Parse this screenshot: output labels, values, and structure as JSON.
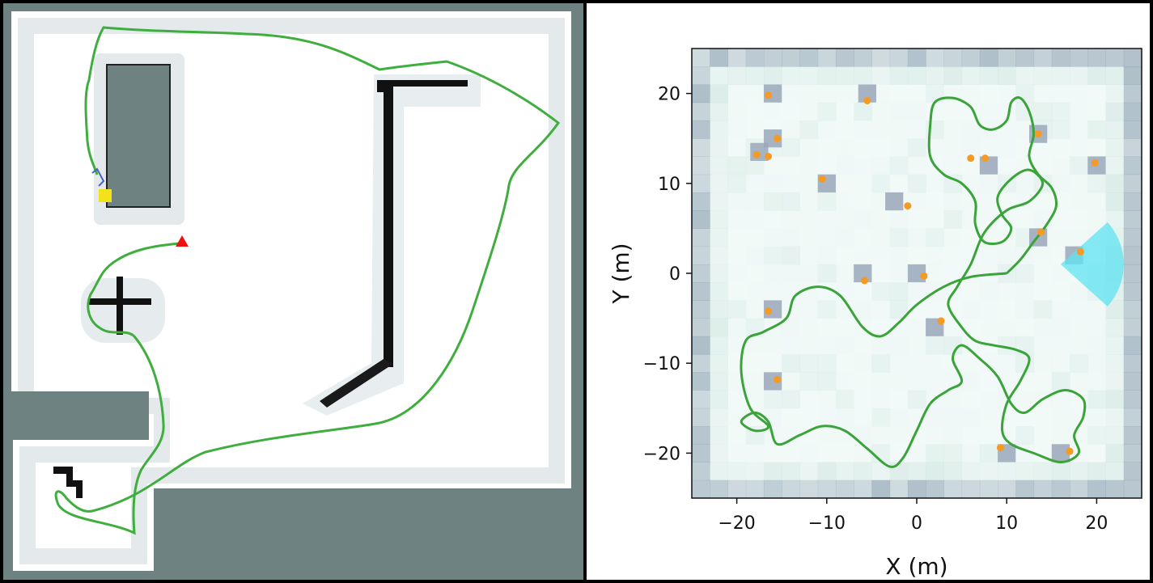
{
  "left_map": {
    "colors": {
      "background": "#6e8282",
      "free_space": "#ffffff",
      "inflation": "#e6ecee",
      "obstacle": "#111111",
      "trajectory": "#3fae3f",
      "goal_marker": "#ee1111",
      "start_marker": "#f2e21a"
    },
    "markers": [
      {
        "name": "goal",
        "shape": "triangle",
        "color": "#ee1111"
      },
      {
        "name": "start",
        "shape": "square",
        "color": "#f2e21a"
      }
    ]
  },
  "chart_data": {
    "type": "scatter",
    "title": "",
    "xlabel": "X (m)",
    "ylabel": "Y (m)",
    "xlim": [
      -25,
      25
    ],
    "ylim": [
      -25,
      25
    ],
    "xticks": [
      -20,
      -10,
      0,
      10,
      20
    ],
    "yticks": [
      -20,
      -10,
      0,
      10,
      20
    ],
    "tick_labels_x": [
      "−20",
      "−10",
      "0",
      "10",
      "20"
    ],
    "tick_labels_y": [
      "−20",
      "−10",
      "0",
      "10",
      "20"
    ],
    "grid": false,
    "colors": {
      "trajectory": "#3aa33a",
      "landmark": "#f59a23",
      "obstacle_cell": "#9aa7ba",
      "sensor_fov": "#5fe3f0"
    },
    "obstacles": [
      [
        -16,
        20
      ],
      [
        -5.5,
        20
      ],
      [
        -16,
        15
      ],
      [
        -17.5,
        13.5
      ],
      [
        -10,
        10
      ],
      [
        13.5,
        15.5
      ],
      [
        8,
        12
      ],
      [
        20,
        12
      ],
      [
        -2.5,
        8
      ],
      [
        13.5,
        4
      ],
      [
        17.5,
        2
      ],
      [
        -6,
        0
      ],
      [
        0,
        0
      ],
      [
        -16,
        -4
      ],
      [
        2,
        -6
      ],
      [
        -16,
        -12
      ],
      [
        10,
        -20
      ],
      [
        16,
        -20
      ]
    ],
    "landmarks": [
      [
        -16.5,
        19.8
      ],
      [
        -5.5,
        19.2
      ],
      [
        -15.5,
        15
      ],
      [
        -17.8,
        13.2
      ],
      [
        -16.5,
        13
      ],
      [
        -10.5,
        10.5
      ],
      [
        6,
        12.8
      ],
      [
        7.6,
        12.8
      ],
      [
        13.5,
        15.5
      ],
      [
        19.8,
        12.3
      ],
      [
        -1,
        7.5
      ],
      [
        13.8,
        4.6
      ],
      [
        18.2,
        2.4
      ],
      [
        -5.8,
        -0.8
      ],
      [
        0.8,
        -0.3
      ],
      [
        -16.5,
        -4.2
      ],
      [
        2.7,
        -5.3
      ],
      [
        -15.5,
        -11.8
      ],
      [
        9.3,
        -19.4
      ],
      [
        17,
        -19.8
      ]
    ],
    "sensor_fov": {
      "origin": [
        16,
        1
      ],
      "range": 7,
      "heading_deg": 0,
      "half_angle_deg": 42
    },
    "trajectory": [
      [
        10,
        0
      ],
      [
        6,
        -0.4
      ],
      [
        3,
        -1.5
      ],
      [
        0,
        -3.5
      ],
      [
        -2,
        -5.5
      ],
      [
        -4,
        -7
      ],
      [
        -6,
        -6
      ],
      [
        -8.5,
        -2.5
      ],
      [
        -11,
        -1.5
      ],
      [
        -13.5,
        -2.5
      ],
      [
        -14.5,
        -5
      ],
      [
        -17,
        -6.5
      ],
      [
        -19,
        -7.5
      ],
      [
        -19.5,
        -11
      ],
      [
        -18.5,
        -15
      ],
      [
        -16.5,
        -17
      ],
      [
        -18,
        -17.5
      ],
      [
        -19.5,
        -16.5
      ],
      [
        -18,
        -15.5
      ],
      [
        -16.5,
        -16.5
      ],
      [
        -15.5,
        -19
      ],
      [
        -13,
        -18
      ],
      [
        -10.5,
        -17
      ],
      [
        -8,
        -17.5
      ],
      [
        -5.5,
        -19.5
      ],
      [
        -3,
        -21.5
      ],
      [
        -1.5,
        -20.5
      ],
      [
        0,
        -17.5
      ],
      [
        1.5,
        -14.5
      ],
      [
        3.5,
        -13
      ],
      [
        5,
        -12
      ],
      [
        4,
        -9.5
      ],
      [
        5,
        -8
      ],
      [
        7,
        -9.5
      ],
      [
        9,
        -11.5
      ],
      [
        10.5,
        -14.5
      ],
      [
        12,
        -15.5
      ],
      [
        14,
        -14
      ],
      [
        16.5,
        -13
      ],
      [
        18.5,
        -14
      ],
      [
        18.5,
        -16
      ],
      [
        17.5,
        -18
      ],
      [
        18,
        -20
      ],
      [
        16,
        -21
      ],
      [
        13,
        -20
      ],
      [
        10.5,
        -19
      ],
      [
        9.5,
        -17.5
      ],
      [
        10,
        -14.5
      ],
      [
        11.5,
        -12
      ],
      [
        12.5,
        -9.5
      ],
      [
        11,
        -8.5
      ],
      [
        8.5,
        -8
      ],
      [
        6.5,
        -7.5
      ],
      [
        5,
        -6
      ],
      [
        3.5,
        -3.5
      ],
      [
        4.5,
        -1.5
      ],
      [
        6,
        1
      ],
      [
        7.5,
        4.5
      ],
      [
        10,
        7
      ],
      [
        12.5,
        8
      ],
      [
        14,
        10
      ],
      [
        12.5,
        11.5
      ],
      [
        10.5,
        10.5
      ],
      [
        9,
        8.5
      ],
      [
        9.5,
        6.5
      ],
      [
        10.5,
        5
      ],
      [
        9.5,
        3.5
      ],
      [
        7.5,
        3.5
      ],
      [
        6.5,
        5.5
      ],
      [
        6.5,
        8
      ],
      [
        5,
        10
      ],
      [
        3,
        11
      ],
      [
        1.5,
        13
      ],
      [
        1.5,
        16.5
      ],
      [
        2,
        19
      ],
      [
        4,
        19.5
      ],
      [
        6,
        18.5
      ],
      [
        7,
        16.5
      ],
      [
        8.5,
        16
      ],
      [
        10,
        17
      ],
      [
        10.5,
        19
      ],
      [
        11.5,
        19.5
      ],
      [
        12.5,
        18
      ],
      [
        13,
        15.5
      ],
      [
        12.5,
        13
      ],
      [
        13.5,
        11
      ],
      [
        15,
        9.5
      ],
      [
        15.5,
        7.5
      ],
      [
        14.5,
        5.5
      ],
      [
        13,
        3.5
      ],
      [
        11.5,
        1.5
      ],
      [
        10,
        0
      ]
    ]
  }
}
